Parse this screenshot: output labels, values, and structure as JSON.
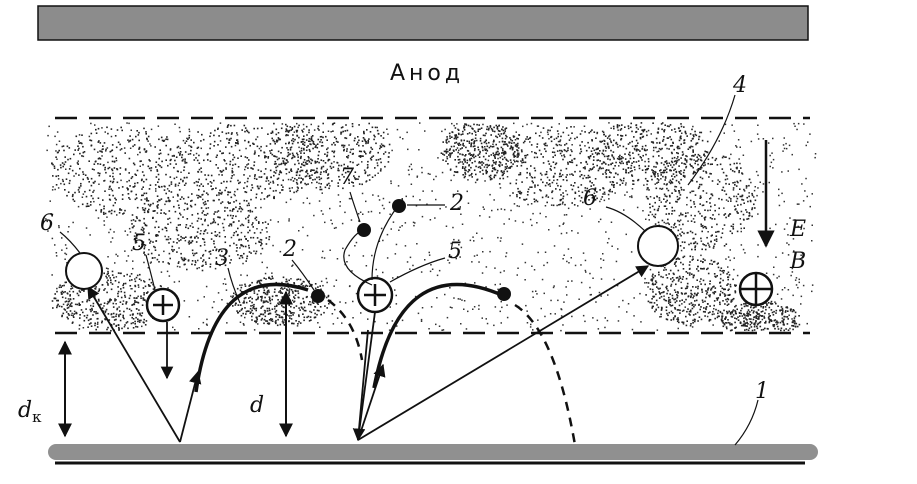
{
  "anode_label": "Анод",
  "labels": {
    "cathode_num": "1",
    "electron_num": "2",
    "trajectory_num": "3",
    "plasma_num": "4",
    "ion_num": "5",
    "atom_num": "6",
    "collision_num": "7",
    "field_e": "E",
    "field_b": "B",
    "d": "d",
    "dk_base": "d",
    "dk_sub": "к"
  },
  "colors": {
    "anode": "#8c8c8c",
    "cathode": "#909090",
    "ink": "#111111"
  }
}
